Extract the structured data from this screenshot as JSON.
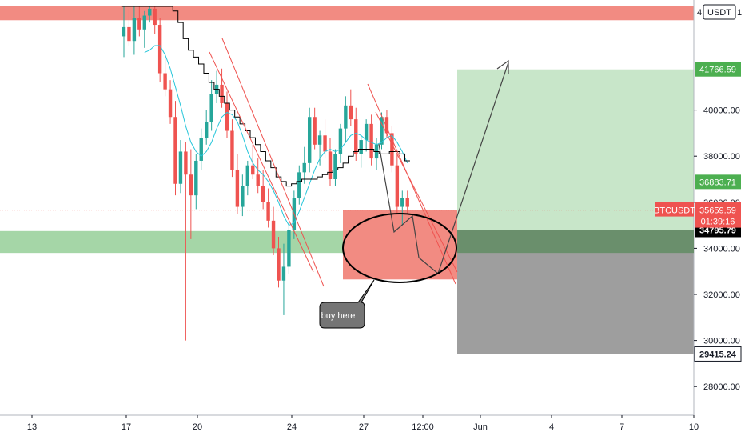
{
  "symbol": "BTCUSDT",
  "currency_button": "USDT",
  "colors": {
    "bull": "#26a69a",
    "bear": "#ef5350",
    "long_zone": "#c8e6c9",
    "stop_zone": "#9e9e9e",
    "buy_zone": "#f28b82",
    "support_band": "#a5d6a7",
    "price_tag": "#ef5350",
    "long_tag": "#4caf50",
    "entry_tag": "#000000"
  },
  "chart_data": {
    "type": "candlestick",
    "title": "",
    "ylim": [
      27000,
      44500
    ],
    "x_tick_labels": [
      "13",
      "17",
      "20",
      "24",
      "27",
      "12:00",
      "Jun",
      "4",
      "7",
      "10"
    ],
    "y_tick_values": [
      28000,
      30000,
      32000,
      34000,
      36000,
      38000,
      40000
    ],
    "y_tick_labels": [
      "28000.00",
      "30000.00",
      "32000.00",
      "34000.00",
      "36000.00",
      "38000.00",
      "40000.00"
    ],
    "price_labels": [
      {
        "id": "target",
        "value": 41766.59,
        "label": "41766.59",
        "kind": "long"
      },
      {
        "id": "level2",
        "value": 36883.71,
        "label": "36883.71",
        "kind": "long"
      },
      {
        "id": "entry",
        "value": 34795.79,
        "label": "34795.79",
        "kind": "entry"
      },
      {
        "id": "stop",
        "value": 29415.24,
        "label": "29415.24",
        "kind": "stop"
      }
    ],
    "current_price": {
      "value": 35659.59,
      "label": "35659.59",
      "countdown": "01:39:16"
    },
    "position": {
      "entry": 34795.79,
      "target": 41766.59,
      "stop": 29415.24
    },
    "support_band": [
      33800,
      34750
    ],
    "resistance_band": [
      43900,
      44500
    ],
    "buy_zone": [
      32650,
      35650
    ],
    "annotation": "buy here",
    "candles": [
      [
        43200,
        44500,
        42300,
        43600
      ],
      [
        43600,
        44400,
        42800,
        43000
      ],
      [
        43000,
        44500,
        42400,
        44000
      ],
      [
        44000,
        44500,
        43200,
        43500
      ],
      [
        43500,
        44300,
        42700,
        44100
      ],
      [
        44100,
        44500,
        43800,
        44400
      ],
      [
        44400,
        44500,
        43300,
        43700
      ],
      [
        43700,
        44000,
        41200,
        41600
      ],
      [
        41600,
        42400,
        40600,
        40900
      ],
      [
        40900,
        41300,
        39400,
        39700
      ],
      [
        39700,
        40400,
        36300,
        36800
      ],
      [
        36800,
        38700,
        36400,
        38200
      ],
      [
        38200,
        38600,
        30000,
        37200
      ],
      [
        37200,
        38300,
        34400,
        36300
      ],
      [
        36300,
        38100,
        35700,
        37800
      ],
      [
        37800,
        39200,
        37400,
        38800
      ],
      [
        38800,
        40000,
        38500,
        39500
      ],
      [
        39500,
        41300,
        39100,
        40700
      ],
      [
        40700,
        41700,
        40300,
        41100
      ],
      [
        41100,
        41800,
        40100,
        40300
      ],
      [
        40300,
        40800,
        38800,
        39100
      ],
      [
        39100,
        39600,
        37100,
        37400
      ],
      [
        37400,
        38100,
        35500,
        35800
      ],
      [
        35800,
        37200,
        35400,
        36700
      ],
      [
        36700,
        37800,
        36300,
        37600
      ],
      [
        37600,
        38500,
        37000,
        37200
      ],
      [
        37200,
        37900,
        36400,
        36700
      ],
      [
        36700,
        37400,
        35700,
        36000
      ],
      [
        36000,
        36600,
        34900,
        35200
      ],
      [
        35200,
        35800,
        33700,
        34000
      ],
      [
        34000,
        34500,
        32300,
        32600
      ],
      [
        32600,
        34200,
        31100,
        33200
      ],
      [
        33200,
        35100,
        32900,
        34800
      ],
      [
        34800,
        36500,
        34400,
        36200
      ],
      [
        36200,
        37600,
        35900,
        37300
      ],
      [
        37300,
        38400,
        36800,
        37700
      ],
      [
        37700,
        40100,
        37300,
        39700
      ],
      [
        39700,
        40100,
        38300,
        38500
      ],
      [
        38500,
        39100,
        37600,
        38900
      ],
      [
        38900,
        39600,
        37900,
        38200
      ],
      [
        38200,
        38800,
        36700,
        37000
      ],
      [
        37000,
        38300,
        36700,
        38100
      ],
      [
        38100,
        39400,
        37700,
        39200
      ],
      [
        39200,
        40600,
        38600,
        40200
      ],
      [
        40200,
        40900,
        39300,
        39600
      ],
      [
        39600,
        40100,
        37800,
        38100
      ],
      [
        38100,
        38900,
        37500,
        38700
      ],
      [
        38700,
        39600,
        38200,
        39400
      ],
      [
        39400,
        39800,
        37600,
        37900
      ],
      [
        37900,
        38800,
        37400,
        38500
      ],
      [
        38500,
        39900,
        38300,
        39700
      ],
      [
        39700,
        40000,
        38800,
        39000
      ],
      [
        39000,
        39300,
        37300,
        37600
      ],
      [
        37600,
        38100,
        35500,
        35800
      ],
      [
        35800,
        36500,
        35000,
        36200
      ],
      [
        36200,
        36500,
        35500,
        35800
      ]
    ],
    "moving_average": [
      null,
      null,
      null,
      null,
      42500,
      42600,
      42800,
      42800,
      42400,
      41800,
      41000,
      40200,
      39300,
      38600,
      38200,
      38000,
      38200,
      38600,
      39200,
      39700,
      39900,
      39800,
      39500,
      38900,
      38200,
      37700,
      37400,
      37200,
      36900,
      36500,
      36000,
      35400,
      35000,
      35100,
      35600,
      36200,
      36800,
      37400,
      37900,
      38200,
      38300,
      38200,
      38300,
      38600,
      38900,
      39000,
      38900,
      38700,
      38600,
      38500,
      38600,
      38800,
      38900,
      38600,
      38200,
      37700
    ],
    "cloud_line": [
      44500,
      44500,
      44500,
      44500,
      44500,
      44500,
      44500,
      44500,
      44500,
      44500,
      44300,
      43800,
      43100,
      42600,
      42300,
      42000,
      41600,
      41200,
      40900,
      40600,
      40300,
      40000,
      39700,
      39400,
      39100,
      38800,
      38500,
      38200,
      37800,
      37500,
      37100,
      36900,
      36700,
      36800,
      36900,
      37000,
      37000,
      37000,
      37100,
      37200,
      37300,
      37400,
      37500,
      37700,
      38000,
      38200,
      38300,
      38300,
      38300,
      38200,
      38100,
      38100,
      38200,
      38200,
      38100,
      37800
    ]
  }
}
